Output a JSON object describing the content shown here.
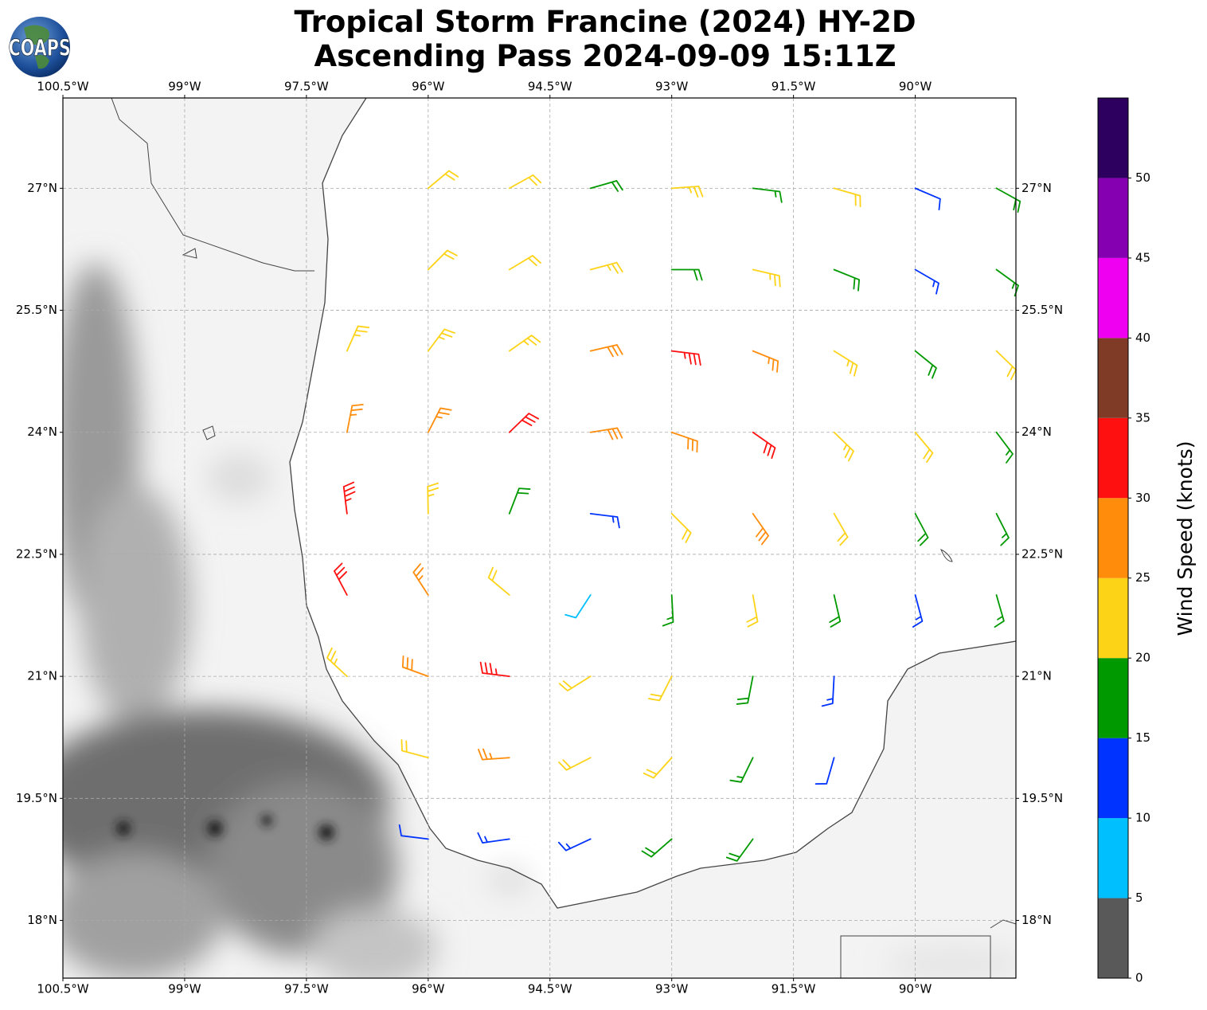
{
  "chart_data": {
    "type": "barbs",
    "title": "Tropical Storm Francine (2024) HY-2D",
    "subtitle": "Ascending Pass 2024-09-09 15:11Z",
    "logo": "COAPS",
    "xlim": [
      -100.5,
      -88.76
    ],
    "ylim": [
      17.29,
      28.11
    ],
    "xticks": [
      {
        "value": -100.5,
        "label": "100.5°W"
      },
      {
        "value": -99,
        "label": "99°W"
      },
      {
        "value": -97.5,
        "label": "97.5°W"
      },
      {
        "value": -96,
        "label": "96°W"
      },
      {
        "value": -94.5,
        "label": "94.5°W"
      },
      {
        "value": -93,
        "label": "93°W"
      },
      {
        "value": -91.5,
        "label": "91.5°W"
      },
      {
        "value": -90,
        "label": "90°W"
      }
    ],
    "yticks": [
      {
        "value": 18,
        "label": "18°N"
      },
      {
        "value": 19.5,
        "label": "19.5°N"
      },
      {
        "value": 21,
        "label": "21°N"
      },
      {
        "value": 22.5,
        "label": "22.5°N"
      },
      {
        "value": 24,
        "label": "24°N"
      },
      {
        "value": 25.5,
        "label": "25.5°N"
      },
      {
        "value": 27,
        "label": "27°N"
      }
    ],
    "grid": true,
    "colorbar": {
      "label": "Wind Speed (knots)",
      "bounds": [
        0,
        5,
        10,
        15,
        20,
        25,
        30,
        35,
        40,
        45,
        50,
        55
      ],
      "colors": [
        "#595959",
        "#00bfff",
        "#0033ff",
        "#009900",
        "#fdd318",
        "#ff8c0a",
        "#ff1010",
        "#7f3b26",
        "#f000f0",
        "#8500b0",
        "#2d0060"
      ],
      "ticks": [
        0,
        5,
        10,
        15,
        20,
        25,
        30,
        35,
        40,
        45,
        50
      ]
    },
    "points": [
      {
        "lon": -96,
        "lat": 19,
        "speed": 12,
        "dir": 277
      },
      {
        "lon": -95,
        "lat": 19,
        "speed": 13,
        "dir": 262
      },
      {
        "lon": -94,
        "lat": 19,
        "speed": 14,
        "dir": 245
      },
      {
        "lon": -93,
        "lat": 19,
        "speed": 18,
        "dir": 229
      },
      {
        "lon": -92,
        "lat": 19,
        "speed": 19,
        "dir": 216
      },
      {
        "lon": -96,
        "lat": 20,
        "speed": 22,
        "dir": 285
      },
      {
        "lon": -95,
        "lat": 20,
        "speed": 27,
        "dir": 266
      },
      {
        "lon": -94,
        "lat": 20,
        "speed": 22,
        "dir": 243
      },
      {
        "lon": -93,
        "lat": 20,
        "speed": 20,
        "dir": 222
      },
      {
        "lon": -92,
        "lat": 20,
        "speed": 17,
        "dir": 206
      },
      {
        "lon": -91,
        "lat": 20,
        "speed": 12,
        "dir": 196
      },
      {
        "lon": -97,
        "lat": 21,
        "speed": 23,
        "dir": 313
      },
      {
        "lon": -96,
        "lat": 21,
        "speed": 28,
        "dir": 290
      },
      {
        "lon": -95,
        "lat": 21,
        "speed": 33,
        "dir": 277
      },
      {
        "lon": -94,
        "lat": 21,
        "speed": 22,
        "dir": 238
      },
      {
        "lon": -93,
        "lat": 21,
        "speed": 22,
        "dir": 207
      },
      {
        "lon": -92,
        "lat": 21,
        "speed": 18,
        "dir": 191
      },
      {
        "lon": -91,
        "lat": 21,
        "speed": 14,
        "dir": 183
      },
      {
        "lon": -97,
        "lat": 22,
        "speed": 32,
        "dir": 332
      },
      {
        "lon": -96,
        "lat": 22,
        "speed": 27,
        "dir": 327
      },
      {
        "lon": -95,
        "lat": 22,
        "speed": 22,
        "dir": 310
      },
      {
        "lon": -94,
        "lat": 22,
        "speed": 8,
        "dir": 213
      },
      {
        "lon": -93,
        "lat": 22,
        "speed": 17,
        "dir": 177
      },
      {
        "lon": -92,
        "lat": 22,
        "speed": 22,
        "dir": 170
      },
      {
        "lon": -91,
        "lat": 22,
        "speed": 18,
        "dir": 167
      },
      {
        "lon": -90,
        "lat": 22,
        "speed": 13,
        "dir": 165
      },
      {
        "lon": -89,
        "lat": 22,
        "speed": 16,
        "dir": 164
      },
      {
        "lon": -97,
        "lat": 23,
        "speed": 33,
        "dir": 353
      },
      {
        "lon": -96,
        "lat": 23,
        "speed": 24,
        "dir": 359
      },
      {
        "lon": -95,
        "lat": 23,
        "speed": 18,
        "dir": 21
      },
      {
        "lon": -94,
        "lat": 23,
        "speed": 14,
        "dir": 97
      },
      {
        "lon": -93,
        "lat": 23,
        "speed": 22,
        "dir": 135
      },
      {
        "lon": -92,
        "lat": 23,
        "speed": 28,
        "dir": 145
      },
      {
        "lon": -91,
        "lat": 23,
        "speed": 22,
        "dir": 150
      },
      {
        "lon": -90,
        "lat": 23,
        "speed": 19,
        "dir": 152
      },
      {
        "lon": -89,
        "lat": 23,
        "speed": 17,
        "dir": 153
      },
      {
        "lon": -97,
        "lat": 24,
        "speed": 27,
        "dir": 11
      },
      {
        "lon": -96,
        "lat": 24,
        "speed": 25,
        "dir": 27
      },
      {
        "lon": -95,
        "lat": 24,
        "speed": 32,
        "dir": 46
      },
      {
        "lon": -94,
        "lat": 24,
        "speed": 28,
        "dir": 81
      },
      {
        "lon": -93,
        "lat": 24,
        "speed": 28,
        "dir": 109
      },
      {
        "lon": -92,
        "lat": 24,
        "speed": 30,
        "dir": 125
      },
      {
        "lon": -91,
        "lat": 24,
        "speed": 23,
        "dir": 134
      },
      {
        "lon": -90,
        "lat": 24,
        "speed": 21,
        "dir": 140
      },
      {
        "lon": -89,
        "lat": 24,
        "speed": 17,
        "dir": 143
      },
      {
        "lon": -97,
        "lat": 25,
        "speed": 23,
        "dir": 24
      },
      {
        "lon": -96,
        "lat": 25,
        "speed": 23,
        "dir": 37
      },
      {
        "lon": -95,
        "lat": 25,
        "speed": 23,
        "dir": 55
      },
      {
        "lon": -94,
        "lat": 25,
        "speed": 28,
        "dir": 77
      },
      {
        "lon": -93,
        "lat": 25,
        "speed": 33,
        "dir": 97
      },
      {
        "lon": -92,
        "lat": 25,
        "speed": 27,
        "dir": 112
      },
      {
        "lon": -91,
        "lat": 25,
        "speed": 24,
        "dir": 122
      },
      {
        "lon": -90,
        "lat": 25,
        "speed": 18,
        "dir": 129
      },
      {
        "lon": -89,
        "lat": 25,
        "speed": 21,
        "dir": 134
      },
      {
        "lon": -96,
        "lat": 26,
        "speed": 22,
        "dir": 45
      },
      {
        "lon": -95,
        "lat": 26,
        "speed": 22,
        "dir": 59
      },
      {
        "lon": -94,
        "lat": 26,
        "speed": 23,
        "dir": 75
      },
      {
        "lon": -93,
        "lat": 26,
        "speed": 18,
        "dir": 90
      },
      {
        "lon": -92,
        "lat": 26,
        "speed": 24,
        "dir": 103
      },
      {
        "lon": -91,
        "lat": 26,
        "speed": 18,
        "dir": 112
      },
      {
        "lon": -90,
        "lat": 26,
        "speed": 13,
        "dir": 120
      },
      {
        "lon": -89,
        "lat": 26,
        "speed": 17,
        "dir": 126
      },
      {
        "lon": -96,
        "lat": 27,
        "speed": 22,
        "dir": 50
      },
      {
        "lon": -95,
        "lat": 27,
        "speed": 21,
        "dir": 61
      },
      {
        "lon": -94,
        "lat": 27,
        "speed": 18,
        "dir": 74
      },
      {
        "lon": -93,
        "lat": 27,
        "speed": 23,
        "dir": 86
      },
      {
        "lon": -92,
        "lat": 27,
        "speed": 17,
        "dir": 97
      },
      {
        "lon": -91,
        "lat": 27,
        "speed": 22,
        "dir": 106
      },
      {
        "lon": -90,
        "lat": 27,
        "speed": 12,
        "dir": 113
      },
      {
        "lon": -89,
        "lat": 27,
        "speed": 18,
        "dir": 119
      }
    ]
  }
}
